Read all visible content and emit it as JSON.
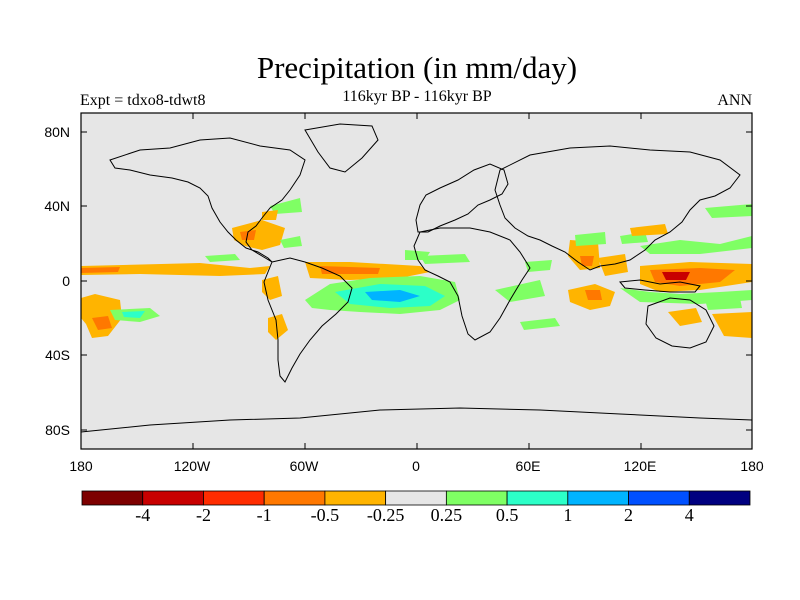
{
  "map": {
    "title": "Precipitation (in mm/day)",
    "subtitle": "116kyr BP - 116kyr BP",
    "left_label": "Expt = tdxo8-tdwt8",
    "right_label": "ANN",
    "lat_ticks": [
      "80N",
      "40N",
      "0",
      "40S",
      "80S"
    ],
    "lon_ticks": [
      "180",
      "120W",
      "60W",
      "0",
      "60E",
      "120E",
      "180"
    ],
    "background_color": "#e6e6e6",
    "coastline_color": "#000000"
  },
  "colorbar": {
    "colors": [
      "#7d0000",
      "#c80000",
      "#ff2c00",
      "#ff7800",
      "#ffb400",
      "#e6e6e6",
      "#7fff64",
      "#2cffc8",
      "#00b4ff",
      "#0050ff",
      "#000080"
    ],
    "labels": [
      "-4",
      "-2",
      "-1",
      "-0.5",
      "-0.25",
      "0.25",
      "0.5",
      "1",
      "2",
      "4"
    ]
  }
}
